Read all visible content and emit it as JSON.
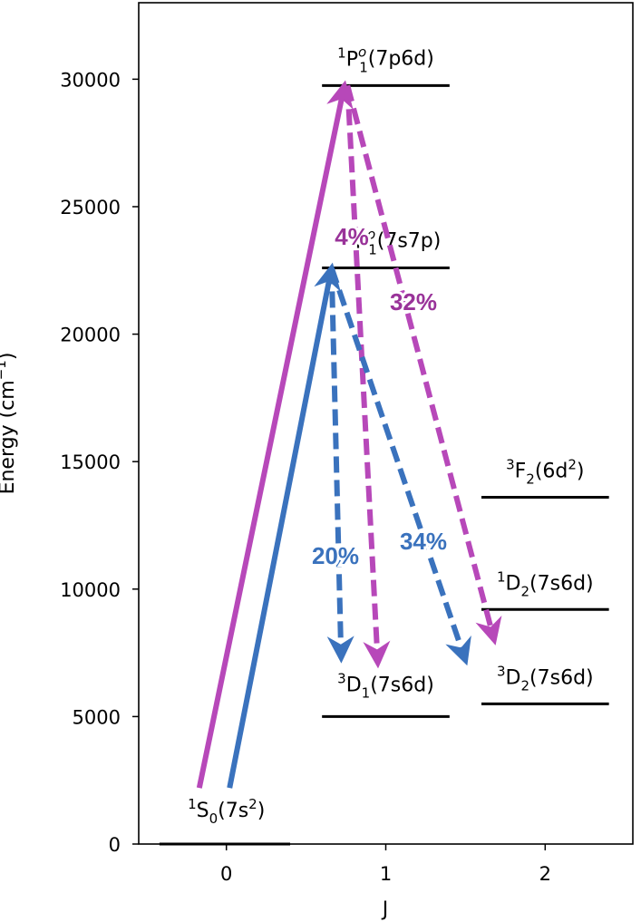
{
  "chart_data": {
    "type": "energy-level-diagram",
    "xlabel": "J",
    "ylabel": "Energy (cm",
    "ylabel_sup": "−1",
    "ylabel_close": ")",
    "xlim": [
      -0.55,
      2.55
    ],
    "ylim": [
      0,
      33000
    ],
    "x_ticks": [
      {
        "value": 0,
        "label": "0"
      },
      {
        "value": 1,
        "label": "1"
      },
      {
        "value": 2,
        "label": "2"
      }
    ],
    "y_ticks": [
      {
        "value": 0,
        "label": "0"
      },
      {
        "value": 5000,
        "label": "5000"
      },
      {
        "value": 10000,
        "label": "10000"
      },
      {
        "value": 15000,
        "label": "15000"
      },
      {
        "value": 20000,
        "label": "20000"
      },
      {
        "value": 25000,
        "label": "25000"
      },
      {
        "value": 30000,
        "label": "30000"
      }
    ],
    "levels": [
      {
        "J": 0,
        "energy": 0,
        "x_range": [
          -0.42,
          0.4
        ],
        "term_sup": "1",
        "term": "S",
        "term_sub": "0",
        "config": "(7s",
        "config_sup": "2",
        "config_close": ")"
      },
      {
        "J": 1,
        "energy": 5000,
        "x_range": [
          0.6,
          1.4
        ],
        "term_sup": "3",
        "term": "D",
        "term_sub": "1",
        "config": "(7s6d)"
      },
      {
        "J": 1,
        "energy": 22600,
        "x_range": [
          0.6,
          1.4
        ],
        "term_sup": "3",
        "term": "P",
        "term_sup2": "o",
        "term_sub": "1",
        "config": "(7s7p)"
      },
      {
        "J": 1,
        "energy": 29750,
        "x_range": [
          0.6,
          1.4
        ],
        "term_sup": "1",
        "term": "P",
        "term_sup2": "o",
        "term_sub": "1",
        "config": "(7p6d)"
      },
      {
        "J": 2,
        "energy": 5500,
        "x_range": [
          1.6,
          2.4
        ],
        "term_sup": "3",
        "term": "D",
        "term_sub": "2",
        "config": "(7s6d)"
      },
      {
        "J": 2,
        "energy": 9200,
        "x_range": [
          1.6,
          2.4
        ],
        "term_sup": "1",
        "term": "D",
        "term_sub": "2",
        "config": "(7s6d)"
      },
      {
        "J": 2,
        "energy": 13600,
        "x_range": [
          1.6,
          2.4
        ],
        "term_sup": "3",
        "term": "F",
        "term_sub": "2",
        "config": "(6d",
        "config_sup": "2",
        "config_close": ")"
      }
    ],
    "transitions": [
      {
        "kind": "excitation",
        "color": "#b748b9",
        "from": [
          -0.17,
          2200
        ],
        "to": [
          0.74,
          29750
        ]
      },
      {
        "kind": "excitation",
        "color": "#3a72bd",
        "from": [
          0.02,
          2200
        ],
        "to": [
          0.66,
          22600
        ]
      },
      {
        "kind": "decay",
        "color": "#b748b9",
        "from": [
          0.76,
          29750
        ],
        "to": [
          0.95,
          7100
        ],
        "label": "4%"
      },
      {
        "kind": "decay",
        "color": "#b748b9",
        "from": [
          0.76,
          29750
        ],
        "to": [
          1.68,
          8000
        ],
        "label": "32%"
      },
      {
        "kind": "decay",
        "color": "#3a72bd",
        "from": [
          0.66,
          22600
        ],
        "to": [
          0.72,
          7300
        ],
        "label": "20%"
      },
      {
        "kind": "decay",
        "color": "#3a72bd",
        "from": [
          0.66,
          22600
        ],
        "to": [
          1.5,
          7200
        ],
        "label": "34%"
      }
    ],
    "label_colors": {
      "magenta": "#993399",
      "blue": "#3a72bd"
    }
  }
}
